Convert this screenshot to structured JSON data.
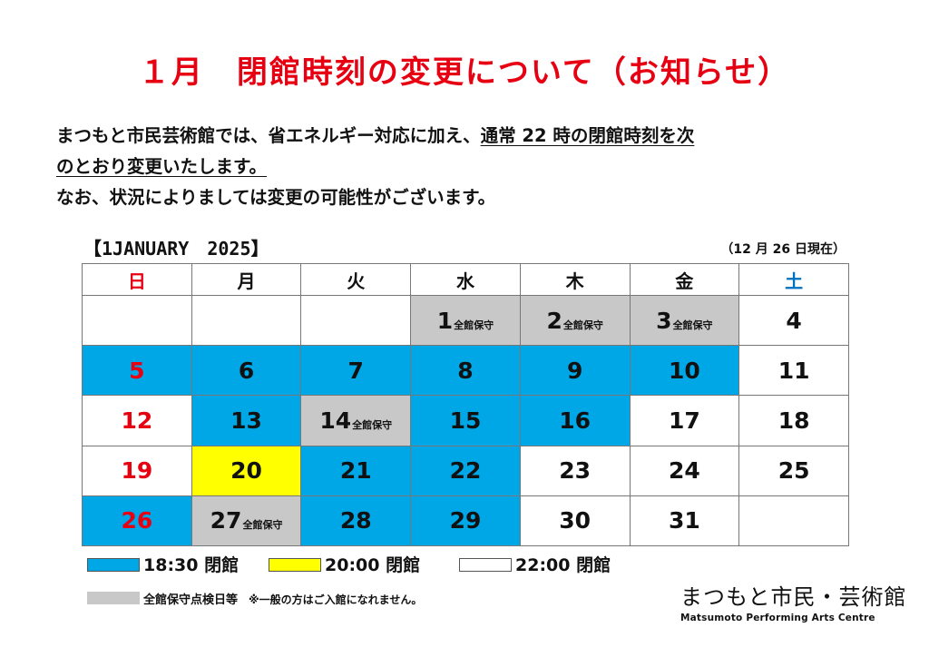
{
  "title": "１月　閉館時刻の変更について（お知らせ）",
  "notice": {
    "line1_plain": "まつもと市民芸術館では、省エネルギー対応に加え、",
    "line1_underlined": "通常 22 時の閉館時刻を次",
    "line2_underlined": "のとおり変更いたします。",
    "line3": "なお、状況によりましては変更の可能性がございます。"
  },
  "calendar": {
    "month_label": "【1JANUARY　2025】",
    "as_of": "（12 月 26 日現在）",
    "weekdays": [
      "日",
      "月",
      "火",
      "水",
      "木",
      "金",
      "土"
    ],
    "weeks": [
      [
        {
          "day": "",
          "type": "white",
          "note": ""
        },
        {
          "day": "",
          "type": "white",
          "note": ""
        },
        {
          "day": "",
          "type": "white",
          "note": ""
        },
        {
          "day": "1",
          "type": "gray",
          "note": "全館保守"
        },
        {
          "day": "2",
          "type": "gray",
          "note": "全館保守"
        },
        {
          "day": "3",
          "type": "gray",
          "note": "全館保守"
        },
        {
          "day": "4",
          "type": "white",
          "note": ""
        }
      ],
      [
        {
          "day": "5",
          "type": "blue",
          "note": ""
        },
        {
          "day": "6",
          "type": "blue",
          "note": ""
        },
        {
          "day": "7",
          "type": "blue",
          "note": ""
        },
        {
          "day": "8",
          "type": "blue",
          "note": ""
        },
        {
          "day": "9",
          "type": "blue",
          "note": ""
        },
        {
          "day": "10",
          "type": "blue",
          "note": ""
        },
        {
          "day": "11",
          "type": "white",
          "note": ""
        }
      ],
      [
        {
          "day": "12",
          "type": "white",
          "note": ""
        },
        {
          "day": "13",
          "type": "blue",
          "note": ""
        },
        {
          "day": "14",
          "type": "gray",
          "note": "全館保守"
        },
        {
          "day": "15",
          "type": "blue",
          "note": ""
        },
        {
          "day": "16",
          "type": "blue",
          "note": ""
        },
        {
          "day": "17",
          "type": "white",
          "note": ""
        },
        {
          "day": "18",
          "type": "white",
          "note": ""
        }
      ],
      [
        {
          "day": "19",
          "type": "white",
          "note": ""
        },
        {
          "day": "20",
          "type": "yellow",
          "note": ""
        },
        {
          "day": "21",
          "type": "blue",
          "note": ""
        },
        {
          "day": "22",
          "type": "blue",
          "note": ""
        },
        {
          "day": "23",
          "type": "white",
          "note": ""
        },
        {
          "day": "24",
          "type": "white",
          "note": ""
        },
        {
          "day": "25",
          "type": "white",
          "note": ""
        }
      ],
      [
        {
          "day": "26",
          "type": "blue",
          "note": ""
        },
        {
          "day": "27",
          "type": "gray",
          "note": "全館保守"
        },
        {
          "day": "28",
          "type": "blue",
          "note": ""
        },
        {
          "day": "29",
          "type": "blue",
          "note": ""
        },
        {
          "day": "30",
          "type": "white",
          "note": ""
        },
        {
          "day": "31",
          "type": "white",
          "note": ""
        },
        {
          "day": "",
          "type": "white",
          "note": ""
        }
      ]
    ]
  },
  "legend": {
    "blue": "18:30 閉館",
    "yellow": "20:00 閉館",
    "white": "22:00 閉館",
    "gray": "全館保守点検日等",
    "gray_note": "※一般の方はご入館になれません。"
  },
  "logo": {
    "jp": "まつもと市民・芸術館",
    "en": "Matsumoto Performing Arts Centre"
  },
  "colors": {
    "title_red": "#e60012",
    "sunday_red": "#e60012",
    "saturday_blue": "#0070c0",
    "blue_cell": "#00a7e6",
    "yellow_cell": "#ffff00",
    "gray_cell": "#c8c8c8"
  }
}
